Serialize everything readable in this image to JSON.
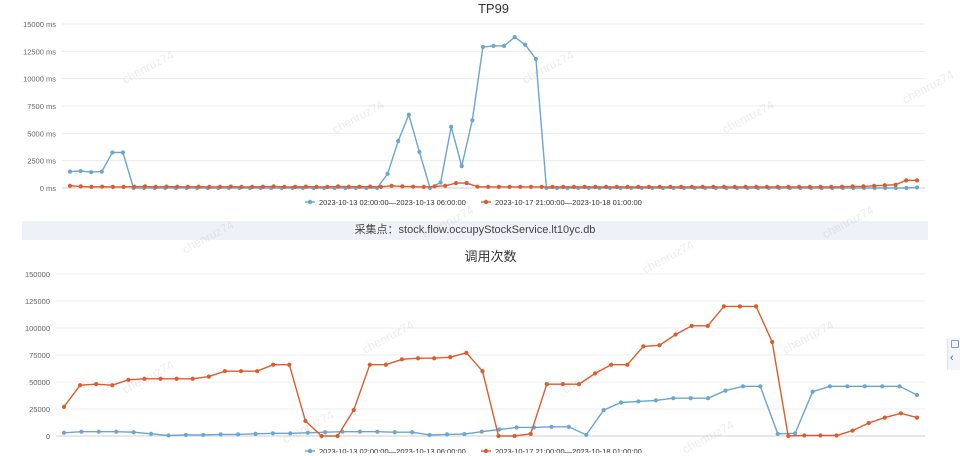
{
  "watermark": "chenruz74",
  "caption": "采集点：stock.flow.occupyStockService.lt10yc.db",
  "side_tools": {
    "grip_icon": "settings-grip-icon",
    "chevron_icon": "chevron-left-icon"
  },
  "chart_data": [
    {
      "type": "line",
      "title": "TP99",
      "yticks": [
        "0 ms",
        "2500 ms",
        "5000 ms",
        "7500 ms",
        "10000 ms",
        "12500 ms",
        "15000 ms"
      ],
      "ylim": [
        0,
        15000
      ],
      "grid": true,
      "legend_position": "bottom",
      "series": [
        {
          "name": "2023-10-13 02:00:00—2023-10-13 06:00:00",
          "color": "#6aa6d0",
          "values": [
            1500,
            1550,
            1450,
            1500,
            3250,
            3250,
            0,
            0,
            0,
            0,
            0,
            0,
            0,
            0,
            0,
            0,
            0,
            0,
            0,
            0,
            0,
            0,
            0,
            0,
            0,
            0,
            0,
            0,
            0,
            0,
            1300,
            4300,
            6700,
            3300,
            0,
            500,
            5600,
            2000,
            6200,
            12900,
            13000,
            13000,
            13800,
            13100,
            11800,
            0,
            0,
            0,
            0,
            0,
            0,
            0,
            0,
            0,
            0,
            0,
            0,
            0,
            0,
            0,
            0,
            0,
            0,
            0,
            0,
            0,
            0,
            0,
            0,
            0,
            0,
            0,
            0,
            0,
            0,
            0,
            0,
            0,
            0,
            0,
            50
          ]
        },
        {
          "name": "2023-10-17 21:00:00—2023-10-18 01:00:00",
          "color": "#dd5c2c",
          "values": [
            200,
            150,
            100,
            120,
            100,
            100,
            120,
            150,
            100,
            130,
            120,
            100,
            120,
            100,
            100,
            130,
            100,
            100,
            120,
            150,
            100,
            100,
            130,
            100,
            100,
            150,
            120,
            120,
            130,
            100,
            200,
            150,
            120,
            100,
            150,
            200,
            450,
            450,
            120,
            100,
            100,
            100,
            100,
            100,
            100,
            100,
            100,
            100,
            100,
            100,
            100,
            100,
            100,
            100,
            100,
            100,
            100,
            100,
            100,
            100,
            100,
            100,
            100,
            100,
            100,
            100,
            100,
            100,
            100,
            100,
            100,
            100,
            120,
            150,
            150,
            200,
            250,
            300,
            700,
            700
          ]
        }
      ]
    },
    {
      "type": "line",
      "title": "调用次数",
      "yticks": [
        "0",
        "25000",
        "50000",
        "75000",
        "100000",
        "125000",
        "150000"
      ],
      "ylim": [
        0,
        150000
      ],
      "grid": true,
      "legend_position": "bottom",
      "series": [
        {
          "name": "2023-10-13 02:00:00—2023-10-13 06:00:00",
          "color": "#6aa6d0",
          "values": [
            3000,
            4000,
            4000,
            4000,
            3500,
            2000,
            500,
            1000,
            1000,
            1500,
            1500,
            2000,
            2500,
            2500,
            3000,
            3500,
            4000,
            4000,
            4000,
            3500,
            3500,
            1000,
            1500,
            1800,
            4000,
            6000,
            8000,
            8000,
            8500,
            8500,
            1000,
            24000,
            31000,
            32000,
            33000,
            35000,
            35000,
            35000,
            42000,
            46000,
            46000,
            2000,
            2500,
            41000,
            46000,
            46000,
            46000,
            46000,
            46000,
            38000
          ]
        },
        {
          "name": "2023-10-17 21:00:00—2023-10-18 01:00:00",
          "color": "#dd5c2c",
          "values": [
            27000,
            47000,
            48000,
            47000,
            52000,
            53000,
            53000,
            53000,
            53000,
            55000,
            60000,
            60000,
            60000,
            66000,
            66000,
            14000,
            0,
            0,
            24000,
            66000,
            66000,
            71000,
            72000,
            72000,
            73000,
            77000,
            60000,
            0,
            0,
            2000,
            48000,
            48000,
            48000,
            58000,
            66000,
            66000,
            83000,
            84000,
            94000,
            102000,
            102000,
            120000,
            120000,
            120000,
            87000,
            0,
            500,
            500,
            500,
            5000,
            12000,
            17000,
            21000,
            17000
          ]
        }
      ]
    }
  ]
}
